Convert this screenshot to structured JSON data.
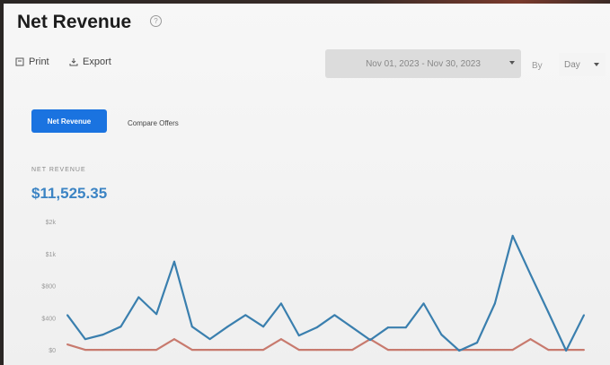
{
  "header": {
    "title": "Net Revenue",
    "help_icon": "help-circle-icon"
  },
  "toolbar": {
    "print_label": "Print",
    "export_label": "Export"
  },
  "filters": {
    "date_range": "Nov 01, 2023 - Nov 30, 2023",
    "by_label": "By",
    "granularity": "Day"
  },
  "tabs": [
    {
      "label": "Net Revenue",
      "active": true
    },
    {
      "label": "Compare Offers",
      "active": false
    }
  ],
  "metric": {
    "label": "NET REVENUE",
    "value": "$11,525.35"
  },
  "chart_data": {
    "type": "line",
    "title": "",
    "xlabel": "",
    "ylabel": "",
    "y_tick_labels": [
      "$0",
      "$400",
      "$800",
      "$1k",
      "$2k"
    ],
    "ylim": [
      0,
      1600
    ],
    "grid": false,
    "x": [
      1,
      2,
      3,
      4,
      5,
      6,
      7,
      8,
      9,
      10,
      11,
      12,
      13,
      14,
      15,
      16,
      17,
      18,
      19,
      20,
      21,
      22,
      23,
      24,
      25,
      26,
      27,
      28,
      29,
      30
    ],
    "series": [
      {
        "color": "#3a7fae",
        "values": [
          444,
          144,
          200,
          300,
          667,
          456,
          1111,
          300,
          144,
          300,
          444,
          300,
          589,
          189,
          289,
          444,
          289,
          133,
          289,
          289,
          589,
          200,
          0,
          100,
          589,
          1433,
          950,
          480,
          0,
          444
        ]
      },
      {
        "color": "#c87a6e",
        "values": [
          78,
          10,
          10,
          10,
          10,
          10,
          144,
          10,
          10,
          10,
          10,
          10,
          144,
          10,
          10,
          10,
          10,
          144,
          10,
          10,
          10,
          10,
          10,
          10,
          10,
          10,
          144,
          10,
          10,
          10
        ]
      }
    ]
  }
}
